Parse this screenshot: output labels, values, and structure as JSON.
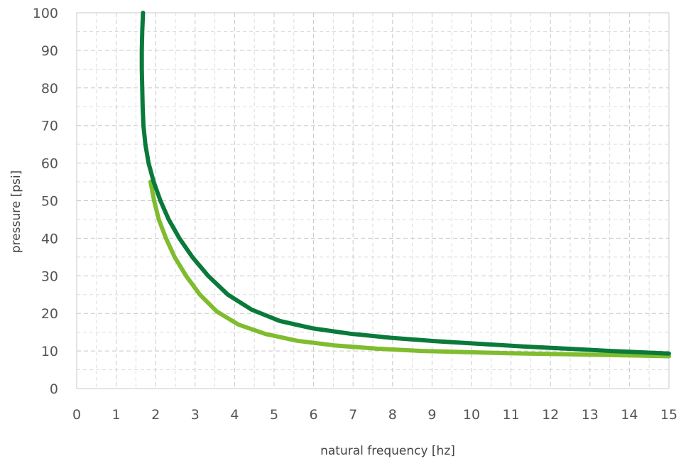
{
  "chart_data": {
    "type": "line",
    "title": "",
    "xlabel": "natural frequency [hz]",
    "ylabel": "pressure [psi]",
    "xlim": [
      0,
      15
    ],
    "ylim": [
      0,
      100
    ],
    "x_major_ticks": [
      0,
      1,
      2,
      3,
      4,
      5,
      6,
      7,
      8,
      9,
      10,
      11,
      12,
      13,
      14,
      15
    ],
    "x_tick_labels": [
      "0",
      "1",
      "2",
      "3",
      "4",
      "5",
      "6",
      "7",
      "8",
      "9",
      "10",
      "11",
      "12",
      "13",
      "14",
      "15"
    ],
    "y_major_ticks": [
      0,
      10,
      20,
      30,
      40,
      50,
      60,
      70,
      80,
      90,
      100
    ],
    "y_tick_labels": [
      "0",
      "10",
      "20",
      "30",
      "40",
      "50",
      "60",
      "70",
      "80",
      "90",
      "100"
    ],
    "grid": {
      "major": true,
      "minor": true,
      "minor_x_step": 0.5,
      "minor_y_step": 5,
      "style": "dashed"
    },
    "legend": "none",
    "series": [
      {
        "color": "#0a7a3b",
        "x": [
          1.68,
          1.66,
          1.65,
          1.65,
          1.66,
          1.67,
          1.69,
          1.74,
          1.82,
          1.95,
          2.12,
          2.33,
          2.6,
          2.93,
          3.33,
          3.83,
          4.43,
          5.14,
          5.99,
          6.93,
          7.97,
          9.08,
          10.19,
          11.31,
          12.42,
          13.52,
          14.6,
          15.0
        ],
        "y": [
          100,
          95,
          90,
          85,
          80,
          75,
          70,
          65,
          60,
          55,
          50,
          45,
          40,
          35,
          30,
          25,
          21,
          18,
          16,
          14.6,
          13.5,
          12.6,
          11.9,
          11.2,
          10.6,
          10.0,
          9.5,
          9.3
        ]
      },
      {
        "color": "#7fbc2e",
        "x": [
          1.87,
          1.96,
          2.08,
          2.26,
          2.48,
          2.77,
          3.12,
          3.55,
          4.1,
          4.79,
          5.59,
          6.52,
          7.61,
          8.75,
          9.86,
          10.94,
          11.99,
          13.03,
          14.05,
          15.0
        ],
        "y": [
          55,
          50,
          45,
          40,
          35,
          30,
          25,
          20.5,
          17,
          14.5,
          12.7,
          11.5,
          10.6,
          10.0,
          9.7,
          9.4,
          9.2,
          9.0,
          8.8,
          8.6
        ]
      }
    ]
  }
}
